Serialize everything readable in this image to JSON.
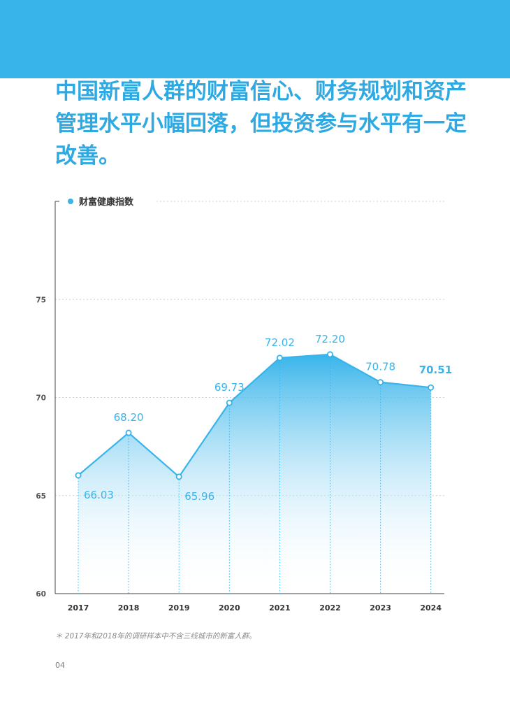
{
  "headline": {
    "lines": [
      "中国新富人群的财富信心、财务规划和资产",
      "管理水平小幅回落，但投资参与水平有一定",
      "改善。"
    ]
  },
  "chart_data": {
    "type": "area",
    "legend": "财富健康指数",
    "categories": [
      "2017",
      "2018",
      "2019",
      "2020",
      "2021",
      "2022",
      "2023",
      "2024"
    ],
    "values": [
      66.03,
      68.2,
      65.96,
      69.73,
      72.02,
      72.2,
      70.78,
      70.51
    ],
    "labels": [
      "66.03",
      "68.20",
      "65.96",
      "69.73",
      "72.02",
      "72.20",
      "70.78",
      "70.51"
    ],
    "highlight_last": true,
    "ylim": [
      60,
      80
    ],
    "yticks": [
      60,
      65,
      70,
      75
    ],
    "grid": true,
    "colors": {
      "line": "#38b4ea",
      "label": "#38b4ea",
      "axis_text": "#333333",
      "grid": "#cfcfcf"
    }
  },
  "footnote": "＊  2017年和2018年的调研样本中不含三线城市的新富人群。",
  "page_number": "04"
}
